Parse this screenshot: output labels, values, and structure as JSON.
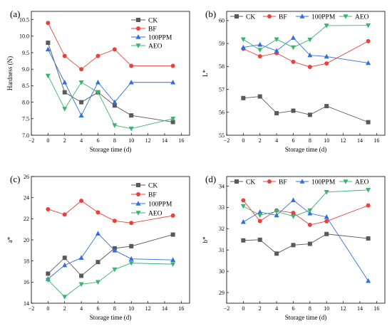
{
  "chart_data": [
    {
      "panel": "(a)",
      "type": "line",
      "xlabel": "Storage time (d)",
      "ylabel": "Hardness (N)",
      "xlim": [
        -2,
        17
      ],
      "ylim": [
        7.0,
        10.75
      ],
      "xticks": [
        -2,
        0,
        2,
        4,
        6,
        8,
        10,
        12,
        14,
        16
      ],
      "yticks": [
        7.0,
        7.5,
        8.0,
        8.5,
        9.0,
        9.5,
        10.0,
        10.5
      ],
      "ytick_labels": [
        "7.0",
        "7.5",
        "8.0",
        "8.5",
        "9.0",
        "9.5",
        "10.0",
        "10.5"
      ],
      "legend": "top-right",
      "x": [
        0,
        2,
        4,
        6,
        8,
        10,
        15
      ],
      "series": [
        {
          "name": "CK",
          "values": [
            9.8,
            8.3,
            8.0,
            8.3,
            7.9,
            7.6,
            7.4
          ],
          "color": "#595959",
          "marker": "square"
        },
        {
          "name": "BF",
          "values": [
            10.4,
            9.4,
            9.0,
            9.4,
            9.6,
            9.1,
            9.1
          ],
          "color": "#e8423c",
          "marker": "circle"
        },
        {
          "name": "100PPM",
          "values": [
            9.6,
            8.6,
            7.6,
            8.6,
            8.0,
            8.6,
            8.6
          ],
          "color": "#2f6fe0",
          "marker": "triangle-up"
        },
        {
          "name": "AEO",
          "values": [
            8.8,
            7.8,
            8.6,
            8.3,
            7.3,
            7.2,
            7.5
          ],
          "color": "#3cb371",
          "marker": "triangle-down"
        }
      ]
    },
    {
      "panel": "(b)",
      "type": "line",
      "xlabel": "Storage time (d)",
      "ylabel": "L*",
      "xlim": [
        -2,
        17
      ],
      "ylim": [
        55,
        60.4
      ],
      "xticks": [
        -2,
        0,
        2,
        4,
        6,
        8,
        10,
        12,
        14,
        16
      ],
      "yticks": [
        55,
        56,
        57,
        58,
        59,
        60
      ],
      "ytick_labels": [
        "55",
        "56",
        "57",
        "58",
        "59",
        "60"
      ],
      "legend": "top",
      "x": [
        0,
        2,
        4,
        6,
        8,
        10,
        15
      ],
      "series": [
        {
          "name": "CK",
          "values": [
            56.62,
            56.69,
            55.96,
            56.07,
            55.89,
            56.27,
            55.57
          ],
          "color": "#595959",
          "marker": "square"
        },
        {
          "name": "BF",
          "values": [
            58.77,
            58.44,
            58.58,
            58.2,
            57.98,
            58.13,
            59.1
          ],
          "color": "#e8423c",
          "marker": "circle"
        },
        {
          "name": "100PPM",
          "values": [
            58.83,
            58.95,
            58.68,
            59.25,
            58.49,
            58.43,
            58.15
          ],
          "color": "#2f6fe0",
          "marker": "triangle-up"
        },
        {
          "name": "AEO",
          "values": [
            59.18,
            58.72,
            59.18,
            58.83,
            59.17,
            59.78,
            59.79
          ],
          "color": "#3cb371",
          "marker": "triangle-down"
        }
      ]
    },
    {
      "panel": "(c)",
      "type": "line",
      "xlabel": "Storage time (d)",
      "ylabel": "a*",
      "xlim": [
        -2,
        17
      ],
      "ylim": [
        14,
        26
      ],
      "xticks": [
        -2,
        0,
        2,
        4,
        6,
        8,
        10,
        12,
        14,
        16
      ],
      "yticks": [
        14,
        16,
        18,
        20,
        22,
        24,
        26
      ],
      "ytick_labels": [
        "14",
        "16",
        "18",
        "20",
        "22",
        "24",
        "26"
      ],
      "legend": "top-right",
      "x": [
        0,
        2,
        4,
        6,
        8,
        10,
        15
      ],
      "series": [
        {
          "name": "CK",
          "values": [
            16.8,
            18.3,
            16.6,
            17.9,
            19.2,
            19.4,
            20.5
          ],
          "color": "#595959",
          "marker": "square"
        },
        {
          "name": "BF",
          "values": [
            22.9,
            22.4,
            23.7,
            22.6,
            21.8,
            21.6,
            22.3
          ],
          "color": "#e8423c",
          "marker": "circle"
        },
        {
          "name": "100PPM",
          "values": [
            16.3,
            17.6,
            18.3,
            20.6,
            19.0,
            18.2,
            18.1
          ],
          "color": "#2f6fe0",
          "marker": "triangle-up"
        },
        {
          "name": "AEO",
          "values": [
            16.2,
            14.6,
            15.8,
            16.0,
            17.2,
            17.8,
            17.7
          ],
          "color": "#3cb371",
          "marker": "triangle-down"
        }
      ]
    },
    {
      "panel": "(d)",
      "type": "line",
      "xlabel": "Storage time (d)",
      "ylabel": "b*",
      "xlim": [
        -2,
        17
      ],
      "ylim": [
        28.5,
        34.45
      ],
      "xticks": [
        -2,
        0,
        2,
        4,
        6,
        8,
        10,
        12,
        14,
        16
      ],
      "yticks": [
        29,
        30,
        31,
        32,
        33,
        34
      ],
      "ytick_labels": [
        "29",
        "30",
        "31",
        "32",
        "33",
        "34"
      ],
      "legend": "top",
      "x": [
        0,
        2,
        4,
        6,
        8,
        10,
        15
      ],
      "series": [
        {
          "name": "CK",
          "values": [
            31.45,
            31.48,
            30.83,
            31.23,
            31.29,
            31.75,
            31.54
          ],
          "color": "#595959",
          "marker": "square"
        },
        {
          "name": "BF",
          "values": [
            33.33,
            32.36,
            32.86,
            32.74,
            32.18,
            32.35,
            33.09
          ],
          "color": "#e8423c",
          "marker": "circle"
        },
        {
          "name": "100PPM",
          "values": [
            32.32,
            32.78,
            32.63,
            33.34,
            32.72,
            32.55,
            29.55
          ],
          "color": "#2f6fe0",
          "marker": "triangle-up"
        },
        {
          "name": "AEO",
          "values": [
            33.06,
            32.63,
            32.81,
            32.58,
            32.86,
            33.72,
            33.82
          ],
          "color": "#3cb371",
          "marker": "triangle-down"
        }
      ]
    }
  ]
}
